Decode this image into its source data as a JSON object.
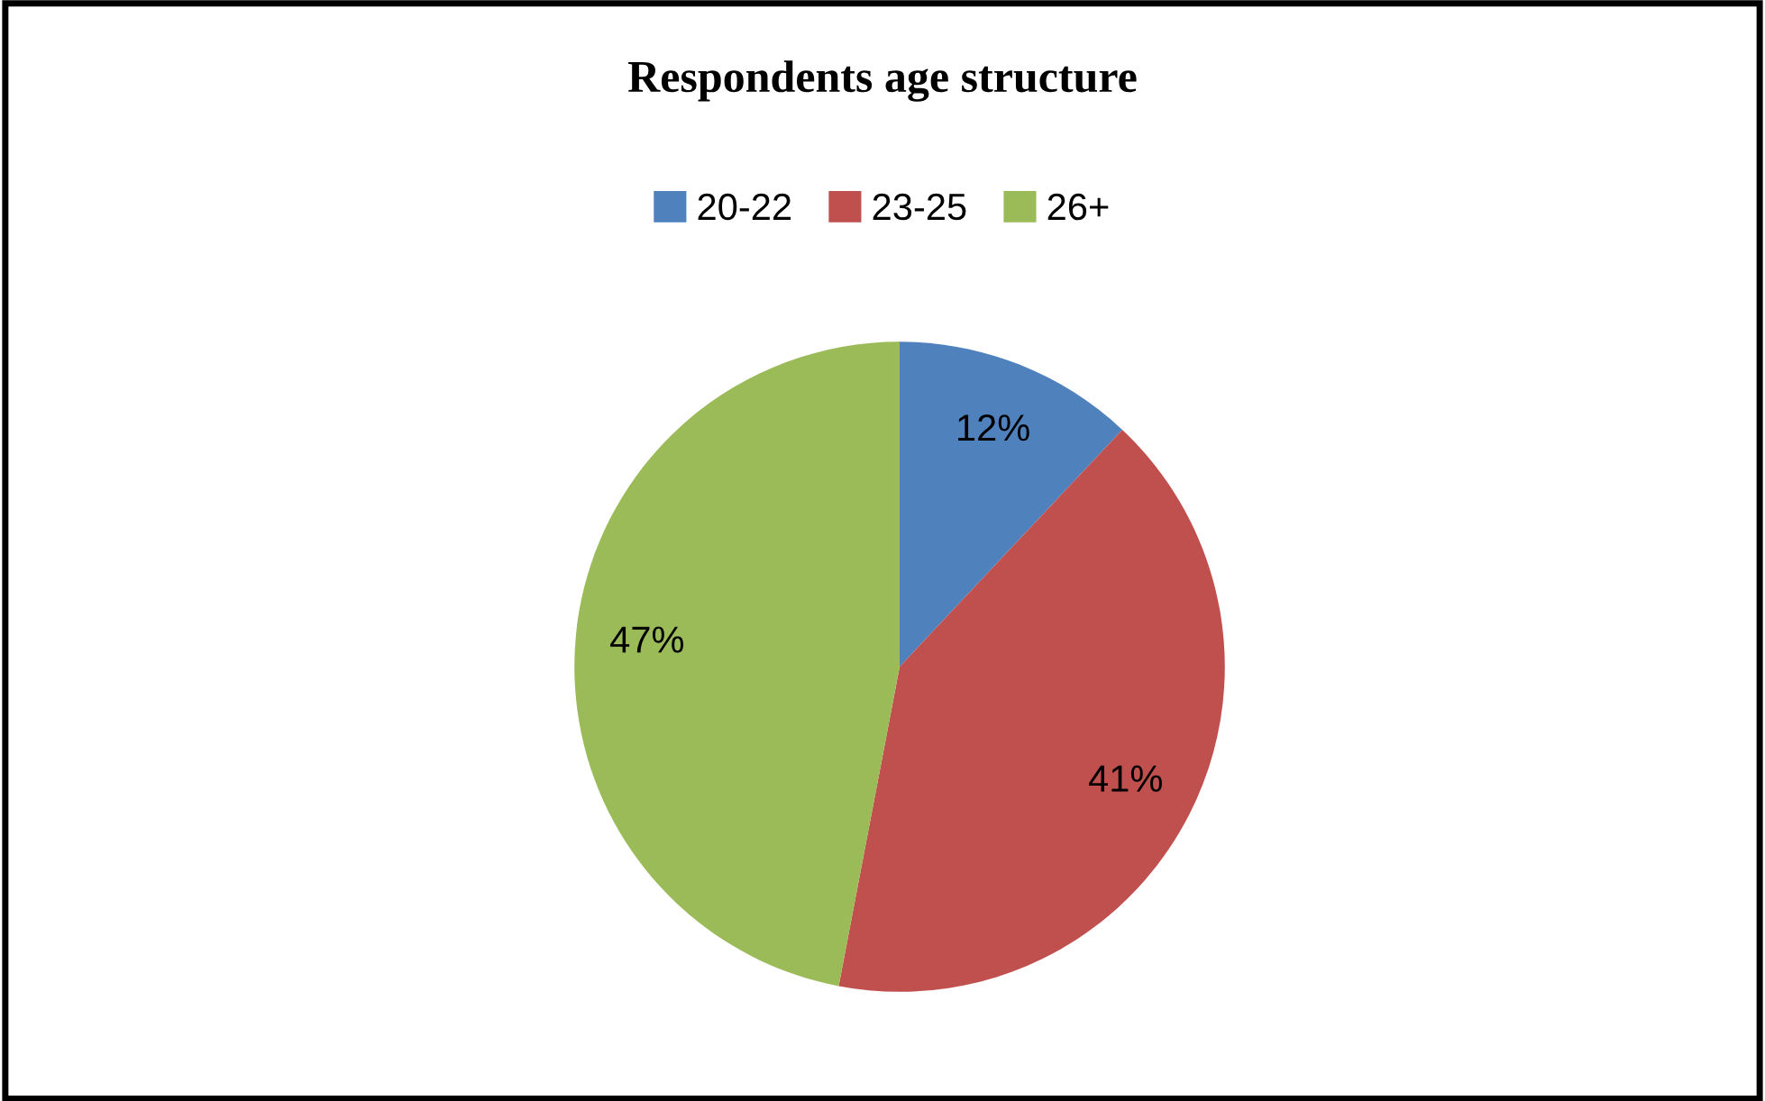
{
  "chart_data": {
    "type": "pie",
    "title": "Respondents age structure",
    "categories": [
      "20-22",
      "23-25",
      "26+"
    ],
    "values": [
      12,
      41,
      47
    ],
    "colors": [
      "#4f81bd",
      "#c0504d",
      "#9bbb59"
    ],
    "value_labels": [
      "12%",
      "41%",
      "47%"
    ],
    "legend": "top"
  }
}
